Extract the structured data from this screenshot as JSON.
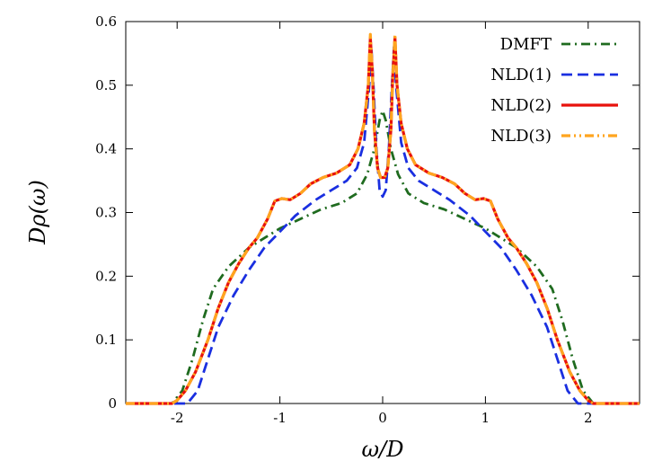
{
  "chart_data": {
    "type": "line",
    "xlabel": "ω/D",
    "ylabel": "Dρ(ω)",
    "xlim": [
      -2.5,
      2.5
    ],
    "ylim": [
      0,
      0.6
    ],
    "x_ticks": [
      "-2",
      "-1",
      "0",
      "1",
      "2"
    ],
    "y_ticks": [
      "0",
      "0.1",
      "0.2",
      "0.3",
      "0.4",
      "0.5",
      "0.6"
    ],
    "legend_position": "top-right",
    "series": [
      {
        "name": "DMFT",
        "color": "#1f6b1f",
        "dash": "dash-dot",
        "points": [
          [
            -2.5,
            0
          ],
          [
            -2.2,
            0
          ],
          [
            -2.05,
            0
          ],
          [
            -1.95,
            0.02
          ],
          [
            -1.85,
            0.07
          ],
          [
            -1.75,
            0.13
          ],
          [
            -1.65,
            0.18
          ],
          [
            -1.5,
            0.215
          ],
          [
            -1.3,
            0.245
          ],
          [
            -1.15,
            0.26
          ],
          [
            -1.0,
            0.275
          ],
          [
            -0.8,
            0.29
          ],
          [
            -0.6,
            0.305
          ],
          [
            -0.4,
            0.315
          ],
          [
            -0.25,
            0.33
          ],
          [
            -0.15,
            0.36
          ],
          [
            -0.08,
            0.4
          ],
          [
            -0.03,
            0.445
          ],
          [
            0,
            0.46
          ],
          [
            0.03,
            0.445
          ],
          [
            0.08,
            0.4
          ],
          [
            0.15,
            0.36
          ],
          [
            0.25,
            0.33
          ],
          [
            0.4,
            0.315
          ],
          [
            0.6,
            0.305
          ],
          [
            0.8,
            0.29
          ],
          [
            1.0,
            0.275
          ],
          [
            1.15,
            0.26
          ],
          [
            1.3,
            0.245
          ],
          [
            1.5,
            0.215
          ],
          [
            1.65,
            0.18
          ],
          [
            1.75,
            0.13
          ],
          [
            1.85,
            0.07
          ],
          [
            1.95,
            0.02
          ],
          [
            2.05,
            0
          ],
          [
            2.2,
            0
          ],
          [
            2.5,
            0
          ]
        ]
      },
      {
        "name": "NLD(1)",
        "color": "#1a2fe0",
        "dash": "dashed",
        "points": [
          [
            -2.5,
            0
          ],
          [
            -2.0,
            0
          ],
          [
            -1.9,
            0
          ],
          [
            -1.8,
            0.02
          ],
          [
            -1.7,
            0.07
          ],
          [
            -1.6,
            0.12
          ],
          [
            -1.45,
            0.17
          ],
          [
            -1.3,
            0.21
          ],
          [
            -1.15,
            0.245
          ],
          [
            -1.0,
            0.27
          ],
          [
            -0.85,
            0.295
          ],
          [
            -0.65,
            0.32
          ],
          [
            -0.5,
            0.335
          ],
          [
            -0.35,
            0.35
          ],
          [
            -0.25,
            0.37
          ],
          [
            -0.18,
            0.41
          ],
          [
            -0.13,
            0.5
          ],
          [
            -0.11,
            0.56
          ],
          [
            -0.09,
            0.5
          ],
          [
            -0.06,
            0.4
          ],
          [
            -0.03,
            0.335
          ],
          [
            0,
            0.325
          ],
          [
            0.03,
            0.335
          ],
          [
            0.06,
            0.4
          ],
          [
            0.09,
            0.5
          ],
          [
            0.11,
            0.56
          ],
          [
            0.13,
            0.5
          ],
          [
            0.18,
            0.41
          ],
          [
            0.25,
            0.37
          ],
          [
            0.35,
            0.35
          ],
          [
            0.5,
            0.335
          ],
          [
            0.65,
            0.32
          ],
          [
            0.85,
            0.295
          ],
          [
            1.0,
            0.27
          ],
          [
            1.15,
            0.245
          ],
          [
            1.3,
            0.21
          ],
          [
            1.45,
            0.17
          ],
          [
            1.6,
            0.12
          ],
          [
            1.7,
            0.07
          ],
          [
            1.8,
            0.02
          ],
          [
            1.9,
            0
          ],
          [
            2.0,
            0
          ],
          [
            2.5,
            0
          ]
        ]
      },
      {
        "name": "NLD(2)",
        "color": "#e8120c",
        "dash": "solid",
        "points": [
          [
            -2.5,
            0
          ],
          [
            -2.05,
            0
          ],
          [
            -2.0,
            0.005
          ],
          [
            -1.92,
            0.02
          ],
          [
            -1.82,
            0.05
          ],
          [
            -1.7,
            0.1
          ],
          [
            -1.6,
            0.15
          ],
          [
            -1.5,
            0.19
          ],
          [
            -1.4,
            0.22
          ],
          [
            -1.3,
            0.245
          ],
          [
            -1.22,
            0.26
          ],
          [
            -1.12,
            0.29
          ],
          [
            -1.05,
            0.318
          ],
          [
            -0.98,
            0.322
          ],
          [
            -0.9,
            0.32
          ],
          [
            -0.8,
            0.33
          ],
          [
            -0.7,
            0.345
          ],
          [
            -0.58,
            0.355
          ],
          [
            -0.45,
            0.362
          ],
          [
            -0.32,
            0.375
          ],
          [
            -0.24,
            0.4
          ],
          [
            -0.18,
            0.44
          ],
          [
            -0.14,
            0.5
          ],
          [
            -0.12,
            0.575
          ],
          [
            -0.1,
            0.52
          ],
          [
            -0.08,
            0.43
          ],
          [
            -0.05,
            0.37
          ],
          [
            -0.02,
            0.355
          ],
          [
            0,
            0.355
          ],
          [
            0.02,
            0.355
          ],
          [
            0.05,
            0.37
          ],
          [
            0.08,
            0.43
          ],
          [
            0.1,
            0.52
          ],
          [
            0.12,
            0.575
          ],
          [
            0.14,
            0.5
          ],
          [
            0.18,
            0.44
          ],
          [
            0.24,
            0.4
          ],
          [
            0.32,
            0.375
          ],
          [
            0.45,
            0.362
          ],
          [
            0.58,
            0.355
          ],
          [
            0.7,
            0.345
          ],
          [
            0.8,
            0.33
          ],
          [
            0.9,
            0.32
          ],
          [
            0.98,
            0.322
          ],
          [
            1.05,
            0.318
          ],
          [
            1.12,
            0.29
          ],
          [
            1.22,
            0.26
          ],
          [
            1.3,
            0.245
          ],
          [
            1.4,
            0.22
          ],
          [
            1.5,
            0.19
          ],
          [
            1.6,
            0.15
          ],
          [
            1.7,
            0.1
          ],
          [
            1.82,
            0.05
          ],
          [
            1.92,
            0.02
          ],
          [
            2.0,
            0.005
          ],
          [
            2.05,
            0
          ],
          [
            2.5,
            0
          ]
        ]
      },
      {
        "name": "NLD(3)",
        "color": "#ffa51f",
        "dash": "dash-dot-dot",
        "points": [
          [
            -2.5,
            0
          ],
          [
            -2.05,
            0
          ],
          [
            -2.0,
            0.005
          ],
          [
            -1.92,
            0.02
          ],
          [
            -1.82,
            0.05
          ],
          [
            -1.7,
            0.1
          ],
          [
            -1.6,
            0.15
          ],
          [
            -1.5,
            0.19
          ],
          [
            -1.4,
            0.22
          ],
          [
            -1.3,
            0.245
          ],
          [
            -1.22,
            0.26
          ],
          [
            -1.12,
            0.29
          ],
          [
            -1.05,
            0.318
          ],
          [
            -0.98,
            0.322
          ],
          [
            -0.9,
            0.32
          ],
          [
            -0.8,
            0.33
          ],
          [
            -0.7,
            0.345
          ],
          [
            -0.58,
            0.355
          ],
          [
            -0.45,
            0.362
          ],
          [
            -0.32,
            0.375
          ],
          [
            -0.24,
            0.4
          ],
          [
            -0.18,
            0.44
          ],
          [
            -0.14,
            0.5
          ],
          [
            -0.12,
            0.58
          ],
          [
            -0.1,
            0.52
          ],
          [
            -0.08,
            0.43
          ],
          [
            -0.05,
            0.37
          ],
          [
            -0.02,
            0.355
          ],
          [
            0,
            0.355
          ],
          [
            0.02,
            0.355
          ],
          [
            0.05,
            0.37
          ],
          [
            0.08,
            0.43
          ],
          [
            0.1,
            0.52
          ],
          [
            0.12,
            0.58
          ],
          [
            0.14,
            0.5
          ],
          [
            0.18,
            0.44
          ],
          [
            0.24,
            0.4
          ],
          [
            0.32,
            0.375
          ],
          [
            0.45,
            0.362
          ],
          [
            0.58,
            0.355
          ],
          [
            0.7,
            0.345
          ],
          [
            0.8,
            0.33
          ],
          [
            0.9,
            0.32
          ],
          [
            0.98,
            0.322
          ],
          [
            1.05,
            0.318
          ],
          [
            1.12,
            0.29
          ],
          [
            1.22,
            0.26
          ],
          [
            1.3,
            0.245
          ],
          [
            1.4,
            0.22
          ],
          [
            1.5,
            0.19
          ],
          [
            1.6,
            0.15
          ],
          [
            1.7,
            0.1
          ],
          [
            1.82,
            0.05
          ],
          [
            1.92,
            0.02
          ],
          [
            2.0,
            0.005
          ],
          [
            2.05,
            0
          ],
          [
            2.5,
            0
          ]
        ]
      }
    ]
  }
}
